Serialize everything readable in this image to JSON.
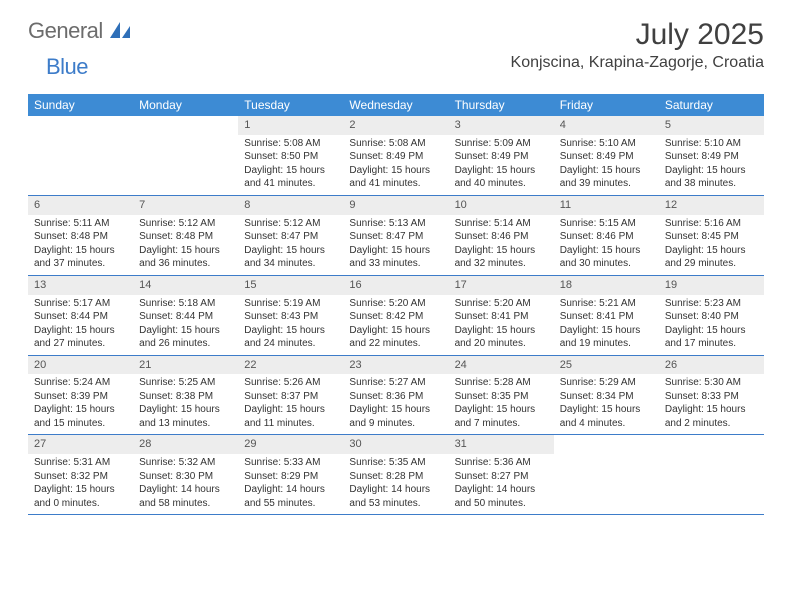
{
  "brand": {
    "text1": "General",
    "text2": "Blue",
    "color1": "#6c6c6c",
    "color2": "#3d7cc9",
    "icon_color": "#2f6fb8"
  },
  "title": "July 2025",
  "location": "Konjscina, Krapina-Zagorje, Croatia",
  "header_bg": "#3d8bd4",
  "header_fg": "#ffffff",
  "daynum_bg": "#ededed",
  "divider_color": "#3d7cc9",
  "day_headers": [
    "Sunday",
    "Monday",
    "Tuesday",
    "Wednesday",
    "Thursday",
    "Friday",
    "Saturday"
  ],
  "weeks": [
    [
      {
        "n": "",
        "sunrise": "",
        "sunset": "",
        "daylight": ""
      },
      {
        "n": "",
        "sunrise": "",
        "sunset": "",
        "daylight": ""
      },
      {
        "n": "1",
        "sunrise": "Sunrise: 5:08 AM",
        "sunset": "Sunset: 8:50 PM",
        "daylight": "Daylight: 15 hours and 41 minutes."
      },
      {
        "n": "2",
        "sunrise": "Sunrise: 5:08 AM",
        "sunset": "Sunset: 8:49 PM",
        "daylight": "Daylight: 15 hours and 41 minutes."
      },
      {
        "n": "3",
        "sunrise": "Sunrise: 5:09 AM",
        "sunset": "Sunset: 8:49 PM",
        "daylight": "Daylight: 15 hours and 40 minutes."
      },
      {
        "n": "4",
        "sunrise": "Sunrise: 5:10 AM",
        "sunset": "Sunset: 8:49 PM",
        "daylight": "Daylight: 15 hours and 39 minutes."
      },
      {
        "n": "5",
        "sunrise": "Sunrise: 5:10 AM",
        "sunset": "Sunset: 8:49 PM",
        "daylight": "Daylight: 15 hours and 38 minutes."
      }
    ],
    [
      {
        "n": "6",
        "sunrise": "Sunrise: 5:11 AM",
        "sunset": "Sunset: 8:48 PM",
        "daylight": "Daylight: 15 hours and 37 minutes."
      },
      {
        "n": "7",
        "sunrise": "Sunrise: 5:12 AM",
        "sunset": "Sunset: 8:48 PM",
        "daylight": "Daylight: 15 hours and 36 minutes."
      },
      {
        "n": "8",
        "sunrise": "Sunrise: 5:12 AM",
        "sunset": "Sunset: 8:47 PM",
        "daylight": "Daylight: 15 hours and 34 minutes."
      },
      {
        "n": "9",
        "sunrise": "Sunrise: 5:13 AM",
        "sunset": "Sunset: 8:47 PM",
        "daylight": "Daylight: 15 hours and 33 minutes."
      },
      {
        "n": "10",
        "sunrise": "Sunrise: 5:14 AM",
        "sunset": "Sunset: 8:46 PM",
        "daylight": "Daylight: 15 hours and 32 minutes."
      },
      {
        "n": "11",
        "sunrise": "Sunrise: 5:15 AM",
        "sunset": "Sunset: 8:46 PM",
        "daylight": "Daylight: 15 hours and 30 minutes."
      },
      {
        "n": "12",
        "sunrise": "Sunrise: 5:16 AM",
        "sunset": "Sunset: 8:45 PM",
        "daylight": "Daylight: 15 hours and 29 minutes."
      }
    ],
    [
      {
        "n": "13",
        "sunrise": "Sunrise: 5:17 AM",
        "sunset": "Sunset: 8:44 PM",
        "daylight": "Daylight: 15 hours and 27 minutes."
      },
      {
        "n": "14",
        "sunrise": "Sunrise: 5:18 AM",
        "sunset": "Sunset: 8:44 PM",
        "daylight": "Daylight: 15 hours and 26 minutes."
      },
      {
        "n": "15",
        "sunrise": "Sunrise: 5:19 AM",
        "sunset": "Sunset: 8:43 PM",
        "daylight": "Daylight: 15 hours and 24 minutes."
      },
      {
        "n": "16",
        "sunrise": "Sunrise: 5:20 AM",
        "sunset": "Sunset: 8:42 PM",
        "daylight": "Daylight: 15 hours and 22 minutes."
      },
      {
        "n": "17",
        "sunrise": "Sunrise: 5:20 AM",
        "sunset": "Sunset: 8:41 PM",
        "daylight": "Daylight: 15 hours and 20 minutes."
      },
      {
        "n": "18",
        "sunrise": "Sunrise: 5:21 AM",
        "sunset": "Sunset: 8:41 PM",
        "daylight": "Daylight: 15 hours and 19 minutes."
      },
      {
        "n": "19",
        "sunrise": "Sunrise: 5:23 AM",
        "sunset": "Sunset: 8:40 PM",
        "daylight": "Daylight: 15 hours and 17 minutes."
      }
    ],
    [
      {
        "n": "20",
        "sunrise": "Sunrise: 5:24 AM",
        "sunset": "Sunset: 8:39 PM",
        "daylight": "Daylight: 15 hours and 15 minutes."
      },
      {
        "n": "21",
        "sunrise": "Sunrise: 5:25 AM",
        "sunset": "Sunset: 8:38 PM",
        "daylight": "Daylight: 15 hours and 13 minutes."
      },
      {
        "n": "22",
        "sunrise": "Sunrise: 5:26 AM",
        "sunset": "Sunset: 8:37 PM",
        "daylight": "Daylight: 15 hours and 11 minutes."
      },
      {
        "n": "23",
        "sunrise": "Sunrise: 5:27 AM",
        "sunset": "Sunset: 8:36 PM",
        "daylight": "Daylight: 15 hours and 9 minutes."
      },
      {
        "n": "24",
        "sunrise": "Sunrise: 5:28 AM",
        "sunset": "Sunset: 8:35 PM",
        "daylight": "Daylight: 15 hours and 7 minutes."
      },
      {
        "n": "25",
        "sunrise": "Sunrise: 5:29 AM",
        "sunset": "Sunset: 8:34 PM",
        "daylight": "Daylight: 15 hours and 4 minutes."
      },
      {
        "n": "26",
        "sunrise": "Sunrise: 5:30 AM",
        "sunset": "Sunset: 8:33 PM",
        "daylight": "Daylight: 15 hours and 2 minutes."
      }
    ],
    [
      {
        "n": "27",
        "sunrise": "Sunrise: 5:31 AM",
        "sunset": "Sunset: 8:32 PM",
        "daylight": "Daylight: 15 hours and 0 minutes."
      },
      {
        "n": "28",
        "sunrise": "Sunrise: 5:32 AM",
        "sunset": "Sunset: 8:30 PM",
        "daylight": "Daylight: 14 hours and 58 minutes."
      },
      {
        "n": "29",
        "sunrise": "Sunrise: 5:33 AM",
        "sunset": "Sunset: 8:29 PM",
        "daylight": "Daylight: 14 hours and 55 minutes."
      },
      {
        "n": "30",
        "sunrise": "Sunrise: 5:35 AM",
        "sunset": "Sunset: 8:28 PM",
        "daylight": "Daylight: 14 hours and 53 minutes."
      },
      {
        "n": "31",
        "sunrise": "Sunrise: 5:36 AM",
        "sunset": "Sunset: 8:27 PM",
        "daylight": "Daylight: 14 hours and 50 minutes."
      },
      {
        "n": "",
        "sunrise": "",
        "sunset": "",
        "daylight": ""
      },
      {
        "n": "",
        "sunrise": "",
        "sunset": "",
        "daylight": ""
      }
    ]
  ]
}
